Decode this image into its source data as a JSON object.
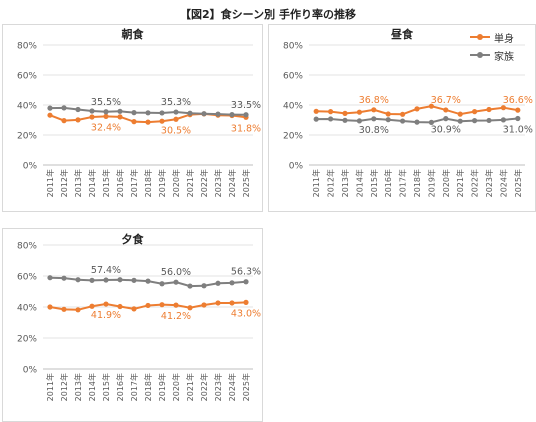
{
  "figure_title": "【図2】食シーン別 手作り率の推移",
  "legend": {
    "single_label": "単身",
    "family_label": "家族",
    "single_color": "#ED7D31",
    "family_color": "#7F7F7F"
  },
  "chart_data": [
    {
      "type": "line",
      "title": "朝食",
      "categories": [
        "2011年",
        "2012年",
        "2013年",
        "2014年",
        "2015年",
        "2016年",
        "2017年",
        "2018年",
        "2019年",
        "2020年",
        "2021年",
        "2022年",
        "2023年",
        "2024年",
        "2025年"
      ],
      "ylim": [
        0,
        80
      ],
      "yticks": [
        0,
        20,
        40,
        60,
        80
      ],
      "ytick_labels": [
        "0%",
        "20%",
        "40%",
        "60%",
        "80%"
      ],
      "grid": true,
      "legend_position": "right",
      "series": [
        {
          "name": "単身",
          "color": "#ED7D31",
          "values": [
            33.2,
            29.6,
            30.1,
            32.0,
            32.4,
            32.1,
            28.9,
            28.6,
            29.2,
            30.5,
            33.6,
            34.1,
            33.2,
            33.0,
            31.8
          ]
        },
        {
          "name": "家族",
          "color": "#7F7F7F",
          "values": [
            37.9,
            38.1,
            37.0,
            36.0,
            35.5,
            35.8,
            34.9,
            34.8,
            34.7,
            35.3,
            34.5,
            34.2,
            33.9,
            33.6,
            33.5
          ]
        }
      ],
      "annotations": [
        {
          "text": "35.5%",
          "series": 1,
          "index": 4,
          "pos": "above"
        },
        {
          "text": "35.3%",
          "series": 1,
          "index": 9,
          "pos": "above"
        },
        {
          "text": "33.5%",
          "series": 1,
          "index": 14,
          "pos": "above"
        },
        {
          "text": "32.4%",
          "series": 0,
          "index": 4,
          "pos": "below"
        },
        {
          "text": "30.5%",
          "series": 0,
          "index": 9,
          "pos": "below"
        },
        {
          "text": "31.8%",
          "series": 0,
          "index": 14,
          "pos": "below"
        }
      ]
    },
    {
      "type": "line",
      "title": "昼食",
      "categories": [
        "2011年",
        "2012年",
        "2013年",
        "2014年",
        "2015年",
        "2016年",
        "2017年",
        "2018年",
        "2019年",
        "2020年",
        "2021年",
        "2022年",
        "2023年",
        "2024年",
        "2025年"
      ],
      "ylim": [
        0,
        80
      ],
      "yticks": [
        0,
        20,
        40,
        60,
        80
      ],
      "ytick_labels": [
        "0%",
        "20%",
        "40%",
        "60%",
        "80%"
      ],
      "grid": true,
      "series": [
        {
          "name": "単身",
          "color": "#ED7D31",
          "values": [
            35.8,
            35.6,
            34.4,
            35.2,
            36.8,
            34.0,
            33.8,
            37.4,
            39.2,
            36.7,
            33.9,
            35.6,
            37.0,
            38.2,
            36.6
          ]
        },
        {
          "name": "家族",
          "color": "#7F7F7F",
          "values": [
            30.6,
            30.7,
            29.8,
            29.4,
            30.8,
            30.2,
            29.3,
            28.6,
            28.4,
            30.9,
            29.2,
            29.6,
            29.7,
            30.1,
            31.0
          ]
        }
      ],
      "annotations": [
        {
          "text": "36.8%",
          "series": 0,
          "index": 4,
          "pos": "above"
        },
        {
          "text": "36.7%",
          "series": 0,
          "index": 9,
          "pos": "above"
        },
        {
          "text": "36.6%",
          "series": 0,
          "index": 14,
          "pos": "above"
        },
        {
          "text": "30.8%",
          "series": 1,
          "index": 4,
          "pos": "below"
        },
        {
          "text": "30.9%",
          "series": 1,
          "index": 9,
          "pos": "below"
        },
        {
          "text": "31.0%",
          "series": 1,
          "index": 14,
          "pos": "below"
        }
      ]
    },
    {
      "type": "line",
      "title": "夕食",
      "categories": [
        "2011年",
        "2012年",
        "2013年",
        "2014年",
        "2015年",
        "2016年",
        "2017年",
        "2018年",
        "2019年",
        "2020年",
        "2021年",
        "2022年",
        "2023年",
        "2024年",
        "2025年"
      ],
      "ylim": [
        0,
        80
      ],
      "yticks": [
        0,
        20,
        40,
        60,
        80
      ],
      "ytick_labels": [
        "0%",
        "20%",
        "40%",
        "60%",
        "80%"
      ],
      "grid": true,
      "series": [
        {
          "name": "単身",
          "color": "#ED7D31",
          "values": [
            40.0,
            38.5,
            38.2,
            40.5,
            41.9,
            40.3,
            38.8,
            41.0,
            41.5,
            41.2,
            39.5,
            41.3,
            42.6,
            42.6,
            43.0
          ]
        },
        {
          "name": "家族",
          "color": "#7F7F7F",
          "values": [
            58.9,
            58.6,
            57.6,
            57.2,
            57.4,
            57.6,
            57.2,
            56.7,
            55.0,
            56.0,
            53.5,
            53.7,
            55.3,
            55.6,
            56.3
          ]
        }
      ],
      "annotations": [
        {
          "text": "57.4%",
          "series": 1,
          "index": 4,
          "pos": "above"
        },
        {
          "text": "56.0%",
          "series": 1,
          "index": 9,
          "pos": "above"
        },
        {
          "text": "56.3%",
          "series": 1,
          "index": 14,
          "pos": "above"
        },
        {
          "text": "41.9%",
          "series": 0,
          "index": 4,
          "pos": "below"
        },
        {
          "text": "41.2%",
          "series": 0,
          "index": 9,
          "pos": "below"
        },
        {
          "text": "43.0%",
          "series": 0,
          "index": 14,
          "pos": "below"
        }
      ]
    }
  ]
}
